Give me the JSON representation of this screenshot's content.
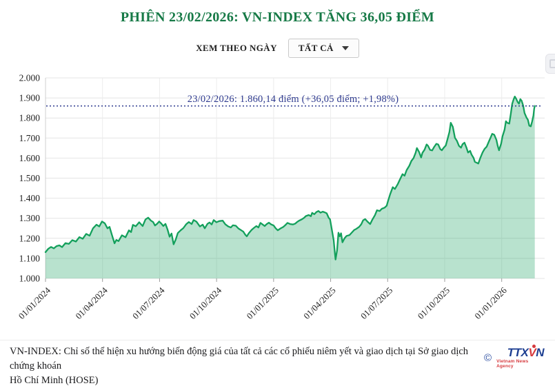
{
  "header": {
    "title": "PHIÊN 23/02/2026: VN-INDEX TĂNG 36,05 ĐIỂM"
  },
  "controls": {
    "view_by_label": "XEM THEO NGÀY",
    "dropdown_value": "TẤT CẢ"
  },
  "chart_data": {
    "type": "area",
    "x_unit": "months_since_2024-01-01",
    "x_ticks": {
      "months": [
        0,
        3,
        6,
        9,
        12,
        15,
        18,
        21,
        24
      ],
      "labels": [
        "01/01/2024",
        "01/04/2024",
        "01/07/2024",
        "01/10/2024",
        "01/01/2025",
        "01/04/2025",
        "01/07/2025",
        "01/10/2025",
        "01/01/2026"
      ]
    },
    "ylim": [
      1000,
      2000
    ],
    "y_ticks": {
      "values": [
        1000,
        1100,
        1200,
        1300,
        1400,
        1500,
        1600,
        1700,
        1800,
        1900,
        2000
      ],
      "labels": [
        "1.000",
        "1.100",
        "1.200",
        "1.300",
        "1.400",
        "1.500",
        "1.600",
        "1.700",
        "1.800",
        "1.900",
        "2.000"
      ]
    },
    "grid": true,
    "legend": false,
    "annotation": {
      "text": "23/02/2026: 1.860,14 điểm (+36,05 điểm; +1,98%)",
      "value": 1860.14,
      "color": "#2e3a8f",
      "line_style": "dotted"
    },
    "series": [
      {
        "name": "VN-INDEX",
        "color": "#14a05c",
        "fill_color": "#14a05c",
        "fill_opacity": 0.3,
        "points": [
          [
            0,
            1131
          ],
          [
            0.15,
            1148
          ],
          [
            0.29,
            1157
          ],
          [
            0.44,
            1150
          ],
          [
            0.58,
            1161
          ],
          [
            0.73,
            1165
          ],
          [
            0.87,
            1156
          ],
          [
            1.05,
            1176
          ],
          [
            1.23,
            1172
          ],
          [
            1.41,
            1191
          ],
          [
            1.6,
            1184
          ],
          [
            1.78,
            1206
          ],
          [
            1.96,
            1198
          ],
          [
            2.14,
            1222
          ],
          [
            2.32,
            1213
          ],
          [
            2.5,
            1250
          ],
          [
            2.68,
            1268
          ],
          [
            2.83,
            1259
          ],
          [
            2.97,
            1284
          ],
          [
            3.12,
            1275
          ],
          [
            3.26,
            1250
          ],
          [
            3.37,
            1257
          ],
          [
            3.48,
            1222
          ],
          [
            3.63,
            1175
          ],
          [
            3.73,
            1192
          ],
          [
            3.84,
            1186
          ],
          [
            4.02,
            1215
          ],
          [
            4.21,
            1205
          ],
          [
            4.39,
            1240
          ],
          [
            4.5,
            1231
          ],
          [
            4.6,
            1267
          ],
          [
            4.75,
            1260
          ],
          [
            4.93,
            1280
          ],
          [
            5.11,
            1261
          ],
          [
            5.26,
            1294
          ],
          [
            5.4,
            1303
          ],
          [
            5.55,
            1288
          ],
          [
            5.66,
            1281
          ],
          [
            5.76,
            1264
          ],
          [
            5.87,
            1272
          ],
          [
            5.98,
            1284
          ],
          [
            6.09,
            1274
          ],
          [
            6.2,
            1261
          ],
          [
            6.31,
            1272
          ],
          [
            6.42,
            1244
          ],
          [
            6.53,
            1208
          ],
          [
            6.63,
            1224
          ],
          [
            6.74,
            1170
          ],
          [
            6.85,
            1194
          ],
          [
            6.96,
            1226
          ],
          [
            7.11,
            1240
          ],
          [
            7.25,
            1251
          ],
          [
            7.4,
            1270
          ],
          [
            7.54,
            1281
          ],
          [
            7.69,
            1271
          ],
          [
            7.79,
            1291
          ],
          [
            7.94,
            1283
          ],
          [
            8.12,
            1259
          ],
          [
            8.27,
            1268
          ],
          [
            8.38,
            1250
          ],
          [
            8.52,
            1272
          ],
          [
            8.63,
            1279
          ],
          [
            8.74,
            1269
          ],
          [
            8.85,
            1291
          ],
          [
            8.99,
            1280
          ],
          [
            9.14,
            1286
          ],
          [
            9.32,
            1288
          ],
          [
            9.46,
            1270
          ],
          [
            9.61,
            1259
          ],
          [
            9.75,
            1254
          ],
          [
            9.86,
            1265
          ],
          [
            10.01,
            1263
          ],
          [
            10.15,
            1249
          ],
          [
            10.3,
            1240
          ],
          [
            10.41,
            1233
          ],
          [
            10.51,
            1218
          ],
          [
            10.59,
            1210
          ],
          [
            10.7,
            1226
          ],
          [
            10.84,
            1242
          ],
          [
            10.95,
            1251
          ],
          [
            11.09,
            1261
          ],
          [
            11.2,
            1254
          ],
          [
            11.31,
            1277
          ],
          [
            11.42,
            1269
          ],
          [
            11.53,
            1261
          ],
          [
            11.64,
            1271
          ],
          [
            11.75,
            1278
          ],
          [
            11.86,
            1270
          ],
          [
            12,
            1264
          ],
          [
            12.11,
            1250
          ],
          [
            12.22,
            1240
          ],
          [
            12.36,
            1249
          ],
          [
            12.51,
            1257
          ],
          [
            12.62,
            1266
          ],
          [
            12.73,
            1277
          ],
          [
            12.87,
            1271
          ],
          [
            13.02,
            1269
          ],
          [
            13.13,
            1273
          ],
          [
            13.23,
            1281
          ],
          [
            13.34,
            1288
          ],
          [
            13.49,
            1295
          ],
          [
            13.6,
            1302
          ],
          [
            13.7,
            1311
          ],
          [
            13.85,
            1316
          ],
          [
            13.96,
            1310
          ],
          [
            14.03,
            1327
          ],
          [
            14.14,
            1320
          ],
          [
            14.25,
            1331
          ],
          [
            14.36,
            1336
          ],
          [
            14.47,
            1328
          ],
          [
            14.58,
            1333
          ],
          [
            14.68,
            1330
          ],
          [
            14.79,
            1325
          ],
          [
            14.9,
            1302
          ],
          [
            14.97,
            1295
          ],
          [
            15.05,
            1252
          ],
          [
            15.16,
            1190
          ],
          [
            15.23,
            1120
          ],
          [
            15.26,
            1094
          ],
          [
            15.34,
            1140
          ],
          [
            15.41,
            1228
          ],
          [
            15.48,
            1210
          ],
          [
            15.55,
            1225
          ],
          [
            15.62,
            1180
          ],
          [
            15.73,
            1200
          ],
          [
            15.84,
            1212
          ],
          [
            15.99,
            1216
          ],
          [
            16.1,
            1227
          ],
          [
            16.24,
            1242
          ],
          [
            16.35,
            1247
          ],
          [
            16.5,
            1257
          ],
          [
            16.61,
            1270
          ],
          [
            16.71,
            1290
          ],
          [
            16.82,
            1296
          ],
          [
            16.93,
            1284
          ],
          [
            17.08,
            1271
          ],
          [
            17.19,
            1292
          ],
          [
            17.33,
            1315
          ],
          [
            17.44,
            1340
          ],
          [
            17.58,
            1336
          ],
          [
            17.69,
            1347
          ],
          [
            17.84,
            1353
          ],
          [
            17.95,
            1363
          ],
          [
            18.02,
            1386
          ],
          [
            18.13,
            1420
          ],
          [
            18.27,
            1455
          ],
          [
            18.38,
            1446
          ],
          [
            18.53,
            1470
          ],
          [
            18.64,
            1492
          ],
          [
            18.78,
            1520
          ],
          [
            18.89,
            1512
          ],
          [
            19,
            1540
          ],
          [
            19.14,
            1562
          ],
          [
            19.25,
            1586
          ],
          [
            19.36,
            1600
          ],
          [
            19.47,
            1626
          ],
          [
            19.54,
            1650
          ],
          [
            19.65,
            1631
          ],
          [
            19.76,
            1603
          ],
          [
            19.83,
            1626
          ],
          [
            19.94,
            1642
          ],
          [
            20.05,
            1668
          ],
          [
            20.12,
            1662
          ],
          [
            20.23,
            1641
          ],
          [
            20.34,
            1638
          ],
          [
            20.45,
            1656
          ],
          [
            20.56,
            1671
          ],
          [
            20.66,
            1668
          ],
          [
            20.77,
            1645
          ],
          [
            20.85,
            1639
          ],
          [
            20.95,
            1652
          ],
          [
            21.06,
            1663
          ],
          [
            21.17,
            1702
          ],
          [
            21.25,
            1731
          ],
          [
            21.32,
            1776
          ],
          [
            21.43,
            1756
          ],
          [
            21.54,
            1701
          ],
          [
            21.64,
            1687
          ],
          [
            21.75,
            1661
          ],
          [
            21.86,
            1652
          ],
          [
            21.94,
            1669
          ],
          [
            22.04,
            1677
          ],
          [
            22.15,
            1651
          ],
          [
            22.23,
            1628
          ],
          [
            22.34,
            1636
          ],
          [
            22.41,
            1618
          ],
          [
            22.52,
            1601
          ],
          [
            22.59,
            1581
          ],
          [
            22.7,
            1576
          ],
          [
            22.77,
            1573
          ],
          [
            22.88,
            1602
          ],
          [
            22.99,
            1628
          ],
          [
            23.1,
            1646
          ],
          [
            23.21,
            1657
          ],
          [
            23.32,
            1682
          ],
          [
            23.42,
            1703
          ],
          [
            23.5,
            1721
          ],
          [
            23.61,
            1716
          ],
          [
            23.72,
            1691
          ],
          [
            23.79,
            1661
          ],
          [
            23.86,
            1639
          ],
          [
            23.97,
            1672
          ],
          [
            24.04,
            1708
          ],
          [
            24.15,
            1741
          ],
          [
            24.22,
            1784
          ],
          [
            24.29,
            1776
          ],
          [
            24.4,
            1772
          ],
          [
            24.48,
            1821
          ],
          [
            24.55,
            1870
          ],
          [
            24.62,
            1891
          ],
          [
            24.69,
            1907
          ],
          [
            24.76,
            1896
          ],
          [
            24.84,
            1879
          ],
          [
            24.91,
            1871
          ],
          [
            24.98,
            1894
          ],
          [
            25.05,
            1886
          ],
          [
            25.13,
            1861
          ],
          [
            25.2,
            1825
          ],
          [
            25.31,
            1801
          ],
          [
            25.38,
            1791
          ],
          [
            25.45,
            1762
          ],
          [
            25.53,
            1758
          ],
          [
            25.6,
            1782
          ],
          [
            25.67,
            1812
          ],
          [
            25.71,
            1846
          ],
          [
            25.74,
            1860.14
          ]
        ]
      }
    ]
  },
  "footer": {
    "line1": "VN-INDEX: Chỉ số thể hiện xu hướng biến động giá của tất cả các cổ phiếu niêm yết và giao dịch tại Sở giao dịch chứng khoán",
    "line2": "Hồ Chí Minh (HOSE)",
    "copyright_symbol": "©",
    "logo": {
      "main": "TTX",
      "v": "V",
      "n": "N",
      "subtext": "Vietnam News Agency"
    }
  },
  "colors": {
    "title_green": "#177a47",
    "line_green": "#14a05c",
    "annotation_navy": "#2e3a8f",
    "grid_h": "#e4e4e4",
    "grid_v": "#ececec",
    "axis_line": "#cfcfcf",
    "tick": "#9b9b9b"
  }
}
